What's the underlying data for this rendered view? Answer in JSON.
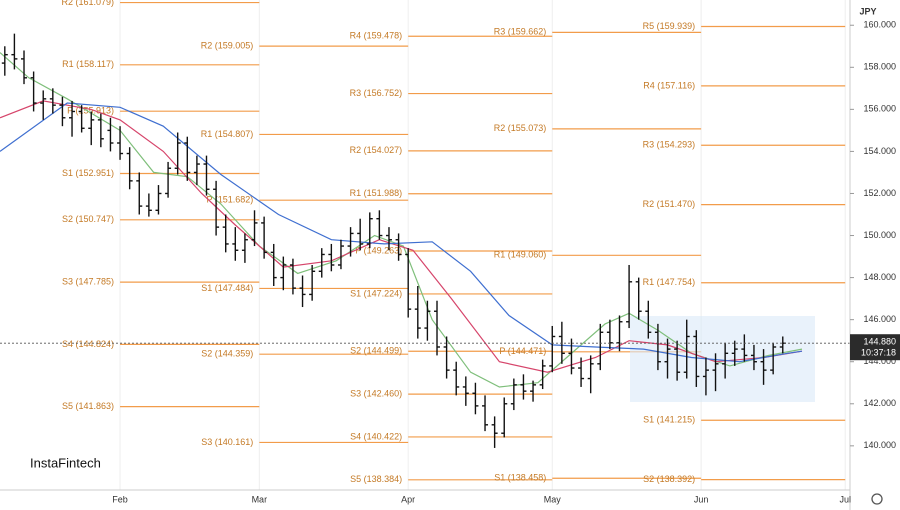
{
  "chart_data": {
    "type": "ohlc",
    "currency": "JPY",
    "logo": "InstaFintech",
    "xlim": [
      6,
      183
    ],
    "ylim": [
      137.9,
      161.2
    ],
    "xticks": [
      {
        "value": 31,
        "label": "Feb"
      },
      {
        "value": 60,
        "label": "Mar"
      },
      {
        "value": 91,
        "label": "Apr"
      },
      {
        "value": 121,
        "label": "May"
      },
      {
        "value": 152,
        "label": "Jun"
      },
      {
        "value": 182,
        "label": "Jul"
      }
    ],
    "yticks": [
      {
        "value": 140,
        "label": "140.000"
      },
      {
        "value": 142,
        "label": "142.000"
      },
      {
        "value": 144,
        "label": "144.000"
      },
      {
        "value": 146,
        "label": "146.000"
      },
      {
        "value": 148,
        "label": "148.000"
      },
      {
        "value": 150,
        "label": "150.000"
      },
      {
        "value": 152,
        "label": "152.000"
      },
      {
        "value": 154,
        "label": "154.000"
      },
      {
        "value": 156,
        "label": "156.000"
      },
      {
        "value": 158,
        "label": "158.000"
      },
      {
        "value": 160,
        "label": "160.000"
      }
    ],
    "grid": true,
    "bar_color": "#111111",
    "pivot_line_color": "#f29c4a",
    "pivot_text_color": "#c47a26",
    "last_price": {
      "value": 144.88,
      "label": "144.880",
      "time": "10:37:18"
    },
    "pivots": [
      {
        "levels": [
          {
            "label": "R2 (161.079)",
            "value": 161.079
          },
          {
            "label": "R1 (158.117)",
            "value": 158.117
          },
          {
            "label": "P (155.913)",
            "value": 155.913
          },
          {
            "label": "S1 (152.951)",
            "value": 152.951
          },
          {
            "label": "S2 (150.747)",
            "value": 150.747
          },
          {
            "label": "S3 (147.785)",
            "value": 147.785
          },
          {
            "label": "S4 (144.824)",
            "value": 144.824
          },
          {
            "label": "S5 (141.863)",
            "value": 141.863
          }
        ]
      },
      {
        "levels": [
          {
            "label": "R2 (159.005)",
            "value": 159.005
          },
          {
            "label": "R1 (154.807)",
            "value": 154.807
          },
          {
            "label": "P (151.682)",
            "value": 151.682
          },
          {
            "label": "S1 (147.484)",
            "value": 147.484
          },
          {
            "label": "S2 (144.359)",
            "value": 144.359
          },
          {
            "label": "S3 (140.161)",
            "value": 140.161
          }
        ]
      },
      {
        "levels": [
          {
            "label": "R4 (159.478)",
            "value": 159.478
          },
          {
            "label": "R3 (156.752)",
            "value": 156.752
          },
          {
            "label": "R2 (154.027)",
            "value": 154.027
          },
          {
            "label": "R1 (151.988)",
            "value": 151.988
          },
          {
            "label": "P (149.263)",
            "value": 149.263
          },
          {
            "label": "S1 (147.224)",
            "value": 147.224
          },
          {
            "label": "S2 (144.499)",
            "value": 144.499
          },
          {
            "label": "S3 (142.460)",
            "value": 142.46
          },
          {
            "label": "S4 (140.422)",
            "value": 140.422
          },
          {
            "label": "S5 (138.384)",
            "value": 138.384
          }
        ]
      },
      {
        "levels": [
          {
            "label": "R3 (159.662)",
            "value": 159.662
          },
          {
            "label": "R2 (155.073)",
            "value": 155.073
          },
          {
            "label": "R1 (149.060)",
            "value": 149.06
          },
          {
            "label": "P (144.471)",
            "value": 144.471
          },
          {
            "label": "S1 (138.458)",
            "value": 138.458
          }
        ]
      },
      {
        "levels": [
          {
            "label": "R5 (159.939)",
            "value": 159.939
          },
          {
            "label": "R4 (157.116)",
            "value": 157.116
          },
          {
            "label": "R3 (154.293)",
            "value": 154.293
          },
          {
            "label": "R2 (151.470)",
            "value": 151.47
          },
          {
            "label": "R1 (147.754)",
            "value": 147.754
          },
          {
            "label": "S1 (141.215)",
            "value": 141.215
          },
          {
            "label": "S2 (138.392)",
            "value": 138.392
          }
        ]
      }
    ],
    "x": [
      7,
      9,
      11,
      13,
      15,
      17,
      19,
      21,
      23,
      25,
      27,
      29,
      31,
      33,
      35,
      37,
      39,
      41,
      43,
      45,
      47,
      49,
      51,
      53,
      55,
      57,
      59,
      61,
      63,
      65,
      67,
      69,
      71,
      73,
      75,
      77,
      79,
      81,
      83,
      85,
      87,
      89,
      91,
      93,
      95,
      97,
      99,
      101,
      103,
      105,
      107,
      109,
      111,
      113,
      115,
      117,
      119,
      121,
      123,
      125,
      127,
      129,
      131,
      133,
      135,
      137,
      139,
      141,
      143,
      145,
      147,
      149,
      151,
      153,
      155,
      157,
      159,
      161,
      163,
      165,
      167,
      169
    ],
    "open": [
      158.2,
      158.6,
      158.4,
      157.5,
      156.3,
      156.5,
      156.2,
      155.6,
      155.9,
      155.1,
      155.5,
      155.0,
      154.4,
      153.9,
      152.6,
      151.4,
      151.2,
      152.0,
      153.2,
      154.4,
      153.0,
      153.4,
      152.2,
      150.4,
      149.6,
      149.3,
      149.8,
      150.6,
      149.2,
      148.0,
      148.6,
      147.5,
      147.2,
      148.3,
      149.1,
      148.6,
      149.5,
      150.1,
      149.6,
      150.8,
      150.0,
      149.8,
      149.1,
      146.5,
      145.6,
      146.4,
      144.7,
      143.6,
      142.8,
      142.5,
      141.9,
      141.0,
      140.6,
      142.0,
      142.9,
      142.6,
      142.9,
      143.8,
      145.2,
      144.4,
      143.7,
      143.2,
      143.9,
      145.4,
      144.9,
      145.9,
      147.8,
      146.4,
      145.4,
      144.0,
      144.6,
      143.5,
      145.2,
      143.3,
      143.6,
      143.9,
      144.4,
      144.6,
      144.3,
      144.0,
      143.6,
      144.7
    ],
    "high": [
      159.0,
      159.6,
      158.8,
      157.8,
      156.9,
      157.0,
      156.6,
      156.4,
      156.2,
      155.9,
      155.8,
      155.6,
      155.2,
      154.2,
      153.0,
      152.0,
      152.4,
      153.5,
      154.9,
      154.7,
      153.8,
      153.8,
      152.6,
      151.0,
      150.4,
      150.1,
      151.2,
      150.9,
      149.6,
      149.0,
      148.9,
      148.1,
      148.6,
      149.4,
      149.6,
      149.8,
      150.4,
      150.8,
      151.1,
      151.2,
      150.4,
      150.1,
      149.4,
      147.6,
      146.9,
      146.9,
      145.2,
      144.0,
      143.3,
      143.0,
      142.4,
      141.4,
      142.3,
      143.2,
      143.4,
      143.1,
      144.1,
      145.7,
      145.9,
      145.1,
      144.2,
      144.3,
      145.8,
      146.0,
      146.2,
      148.6,
      148.0,
      146.9,
      145.8,
      145.1,
      145.0,
      146.0,
      145.5,
      144.2,
      144.4,
      144.9,
      145.0,
      145.3,
      144.8,
      144.6,
      144.9,
      145.2
    ],
    "low": [
      157.6,
      157.9,
      157.2,
      155.9,
      155.5,
      155.8,
      155.2,
      154.7,
      154.9,
      154.3,
      154.2,
      154.0,
      153.6,
      152.2,
      151.0,
      150.9,
      151.0,
      151.8,
      152.9,
      152.6,
      152.4,
      151.9,
      150.0,
      149.2,
      148.8,
      148.7,
      149.5,
      148.9,
      147.6,
      147.4,
      147.2,
      146.6,
      146.9,
      148.0,
      148.3,
      148.4,
      149.0,
      149.3,
      149.4,
      149.8,
      149.3,
      148.8,
      146.1,
      145.1,
      145.0,
      144.3,
      143.2,
      142.4,
      141.9,
      141.5,
      140.7,
      139.9,
      140.4,
      141.7,
      142.2,
      142.1,
      142.7,
      143.5,
      143.9,
      143.4,
      142.8,
      142.5,
      143.6,
      144.6,
      144.5,
      145.6,
      146.0,
      145.1,
      143.6,
      143.2,
      143.1,
      143.2,
      142.8,
      142.4,
      142.6,
      143.2,
      143.8,
      144.0,
      143.6,
      142.9,
      143.4,
      144.4
    ],
    "close": [
      158.6,
      158.4,
      157.5,
      156.3,
      156.5,
      156.2,
      155.6,
      155.9,
      155.1,
      155.5,
      154.6,
      154.4,
      153.9,
      152.6,
      151.4,
      151.2,
      152.0,
      153.2,
      154.4,
      153.0,
      153.4,
      152.2,
      150.4,
      149.6,
      149.3,
      149.8,
      150.6,
      149.2,
      148.0,
      148.6,
      147.5,
      147.2,
      148.3,
      149.1,
      148.6,
      149.5,
      150.1,
      149.6,
      150.8,
      150.0,
      149.8,
      149.1,
      146.5,
      145.6,
      146.4,
      144.7,
      143.6,
      142.8,
      142.5,
      141.9,
      141.0,
      140.6,
      142.0,
      142.9,
      142.6,
      142.9,
      143.8,
      145.2,
      144.4,
      143.7,
      143.2,
      143.9,
      145.4,
      144.9,
      145.9,
      147.8,
      146.4,
      145.4,
      144.0,
      144.6,
      143.5,
      145.2,
      143.3,
      143.6,
      143.9,
      144.4,
      144.6,
      144.3,
      144.0,
      143.6,
      144.7,
      144.88
    ],
    "lines": [
      {
        "color": "#7fbf7b",
        "x": [
          6,
          12,
          20,
          31,
          38,
          45,
          52,
          60,
          68,
          76,
          84,
          90,
          96,
          104,
          110,
          118,
          124,
          132,
          137,
          143,
          150,
          158,
          166,
          173
        ],
        "values": [
          158.7,
          157.5,
          156.5,
          155.0,
          153.0,
          152.8,
          151.5,
          149.5,
          148.2,
          148.8,
          150.0,
          149.5,
          146.0,
          143.5,
          142.8,
          143.0,
          144.2,
          145.8,
          146.3,
          145.5,
          144.4,
          143.8,
          144.3,
          144.6
        ]
      },
      {
        "color": "#d6456b",
        "x": [
          6,
          15,
          25,
          31,
          40,
          48,
          55,
          65,
          75,
          85,
          92,
          100,
          110,
          120,
          130,
          137,
          145,
          155,
          165,
          173
        ],
        "values": [
          155.6,
          156.4,
          156.0,
          155.5,
          154.0,
          152.0,
          150.5,
          148.5,
          148.8,
          149.8,
          149.3,
          147.0,
          144.0,
          143.5,
          144.2,
          145.0,
          144.8,
          144.0,
          144.2,
          144.5
        ]
      },
      {
        "color": "#3f6fd0",
        "x": [
          6,
          20,
          31,
          40,
          52,
          64,
          75,
          86,
          96,
          104,
          112,
          121,
          130,
          140,
          150,
          160,
          170,
          173
        ],
        "values": [
          154.0,
          156.3,
          156.1,
          155.2,
          152.9,
          151.0,
          149.8,
          149.6,
          149.7,
          148.3,
          146.2,
          144.8,
          144.7,
          144.6,
          144.2,
          144.0,
          144.4,
          144.5
        ]
      }
    ]
  }
}
